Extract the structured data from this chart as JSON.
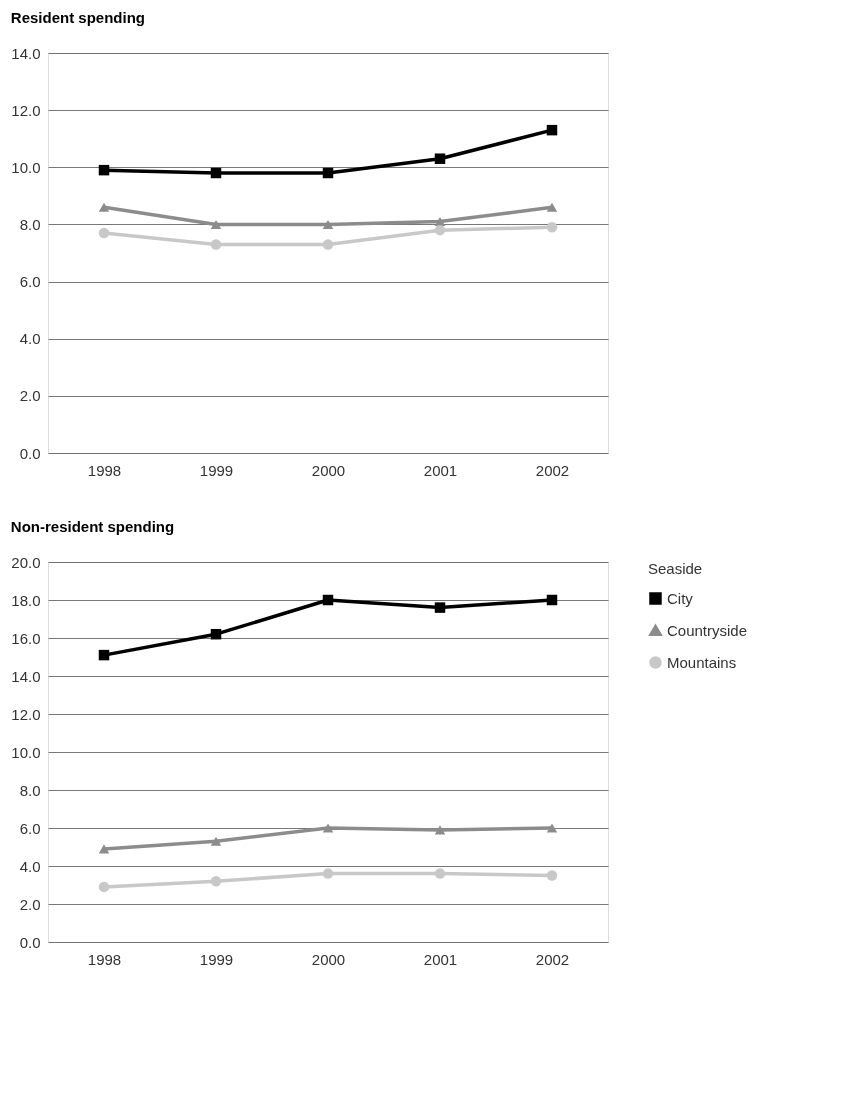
{
  "chart_data": [
    {
      "type": "line",
      "title": "Resident spending",
      "categories": [
        "1998",
        "1999",
        "2000",
        "2001",
        "2002"
      ],
      "ylim": [
        0,
        14
      ],
      "yticks": [
        {
          "value": 0,
          "label": "0.0"
        },
        {
          "value": 2,
          "label": "2.0"
        },
        {
          "value": 4,
          "label": "4.0"
        },
        {
          "value": 6,
          "label": "6.0"
        },
        {
          "value": 8,
          "label": "8.0"
        },
        {
          "value": 10,
          "label": "10.0"
        },
        {
          "value": 12,
          "label": "12.0"
        },
        {
          "value": 14,
          "label": "14.0"
        }
      ],
      "grid": "y",
      "line_style": "solid",
      "series": [
        {
          "color": "#000000",
          "marker": "square",
          "values": [
            9.9,
            9.8,
            9.8,
            10.3,
            11.3
          ]
        },
        {
          "color": "#8c8c8c",
          "marker": "triangle",
          "values": [
            8.6,
            8.0,
            8.0,
            8.1,
            8.6
          ]
        },
        {
          "color": "#c8c8c8",
          "marker": "circle",
          "values": [
            7.7,
            7.3,
            7.3,
            7.8,
            7.9
          ]
        }
      ]
    },
    {
      "type": "line",
      "title": "Non-resident spending",
      "categories": [
        "1998",
        "1999",
        "2000",
        "2001",
        "2002"
      ],
      "ylim": [
        0,
        20
      ],
      "yticks": [
        {
          "value": 0,
          "label": "0.0"
        },
        {
          "value": 2,
          "label": "2.0"
        },
        {
          "value": 4,
          "label": "4.0"
        },
        {
          "value": 6,
          "label": "6.0"
        },
        {
          "value": 8,
          "label": "8.0"
        },
        {
          "value": 10,
          "label": "10.0"
        },
        {
          "value": 12,
          "label": "12.0"
        },
        {
          "value": 14,
          "label": "14.0"
        },
        {
          "value": 16,
          "label": "16.0"
        },
        {
          "value": 18,
          "label": "18.0"
        },
        {
          "value": 20,
          "label": "20.0"
        }
      ],
      "grid": "y",
      "legend": "right",
      "legend_title": "Seaside",
      "line_style": "solid",
      "series": [
        {
          "name": "City",
          "color": "#000000",
          "marker": "square",
          "values": [
            15.1,
            16.2,
            18.0,
            17.6,
            18.0
          ]
        },
        {
          "name": "Countryside",
          "color": "#8c8c8c",
          "marker": "triangle",
          "values": [
            4.9,
            5.3,
            6.0,
            5.9,
            6.0
          ]
        },
        {
          "name": "Mountains",
          "color": "#c8c8c8",
          "marker": "circle",
          "values": [
            2.9,
            3.2,
            3.6,
            3.6,
            3.5
          ]
        }
      ]
    }
  ]
}
